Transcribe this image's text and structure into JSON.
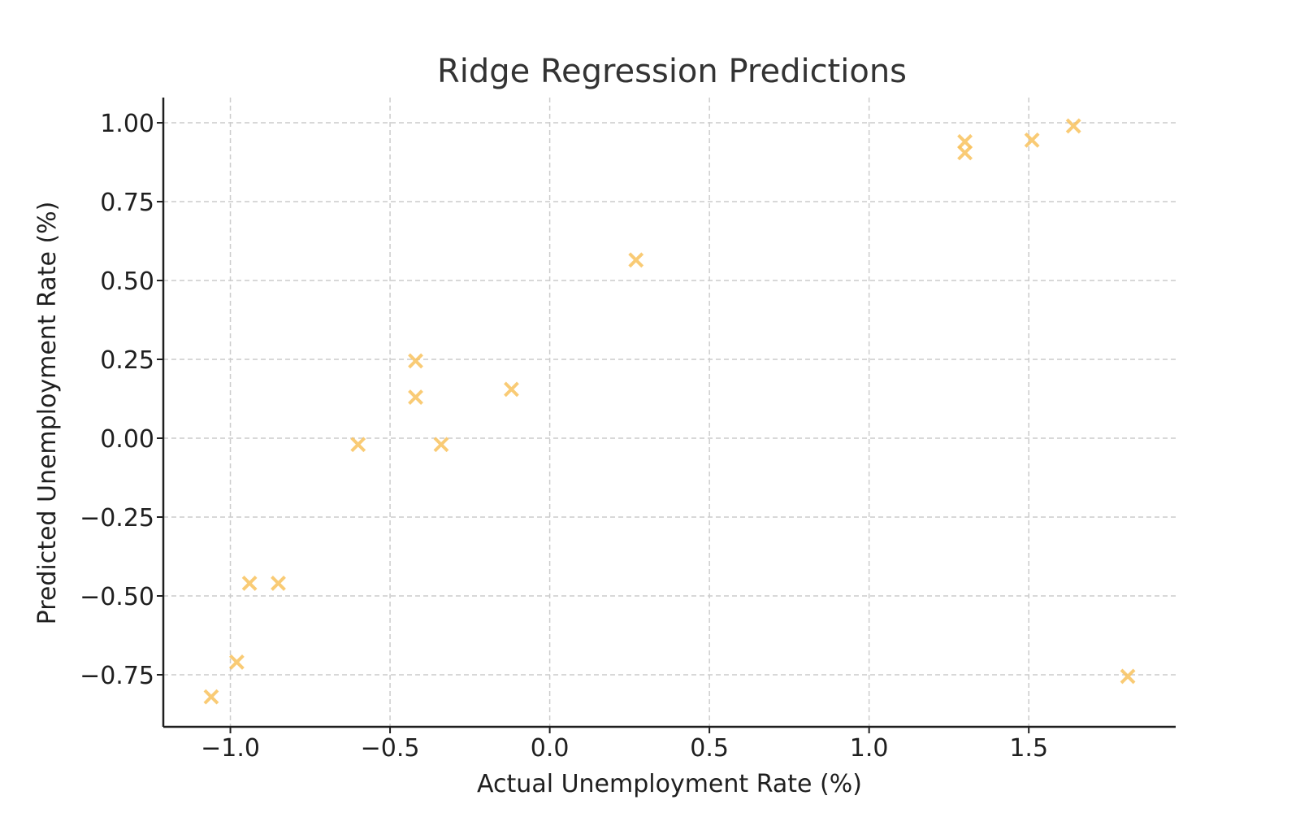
{
  "chart_data": {
    "type": "scatter",
    "title": "Ridge Regression Predictions",
    "xlabel": "Actual Unemployment Rate (%)",
    "ylabel": "Predicted Unemployment Rate (%)",
    "xlim": [
      -1.21,
      1.96
    ],
    "ylim": [
      -0.915,
      1.08
    ],
    "x_ticks": [
      -1.0,
      -0.5,
      0.0,
      0.5,
      1.0,
      1.5
    ],
    "x_tick_labels": [
      "−1.0",
      "−0.5",
      "0.0",
      "0.5",
      "1.0",
      "1.5"
    ],
    "y_ticks": [
      1.0,
      0.75,
      0.5,
      0.25,
      0.0,
      -0.25,
      -0.5,
      -0.75
    ],
    "y_tick_labels": [
      "1.00",
      "0.75",
      "0.50",
      "0.25",
      "0.00",
      "−0.25",
      "−0.50",
      "−0.75"
    ],
    "grid": true,
    "marker": "x",
    "marker_color": "#f9c25e",
    "points": [
      {
        "x": -1.06,
        "y": -0.82
      },
      {
        "x": -0.98,
        "y": -0.71
      },
      {
        "x": -0.94,
        "y": -0.46
      },
      {
        "x": -0.85,
        "y": -0.46
      },
      {
        "x": -0.6,
        "y": -0.02
      },
      {
        "x": -0.42,
        "y": 0.245
      },
      {
        "x": -0.42,
        "y": 0.13
      },
      {
        "x": -0.34,
        "y": -0.02
      },
      {
        "x": -0.12,
        "y": 0.155
      },
      {
        "x": 0.27,
        "y": 0.565
      },
      {
        "x": 1.3,
        "y": 0.94
      },
      {
        "x": 1.3,
        "y": 0.905
      },
      {
        "x": 1.51,
        "y": 0.945
      },
      {
        "x": 1.64,
        "y": 0.99
      },
      {
        "x": 1.81,
        "y": -0.755
      }
    ]
  }
}
